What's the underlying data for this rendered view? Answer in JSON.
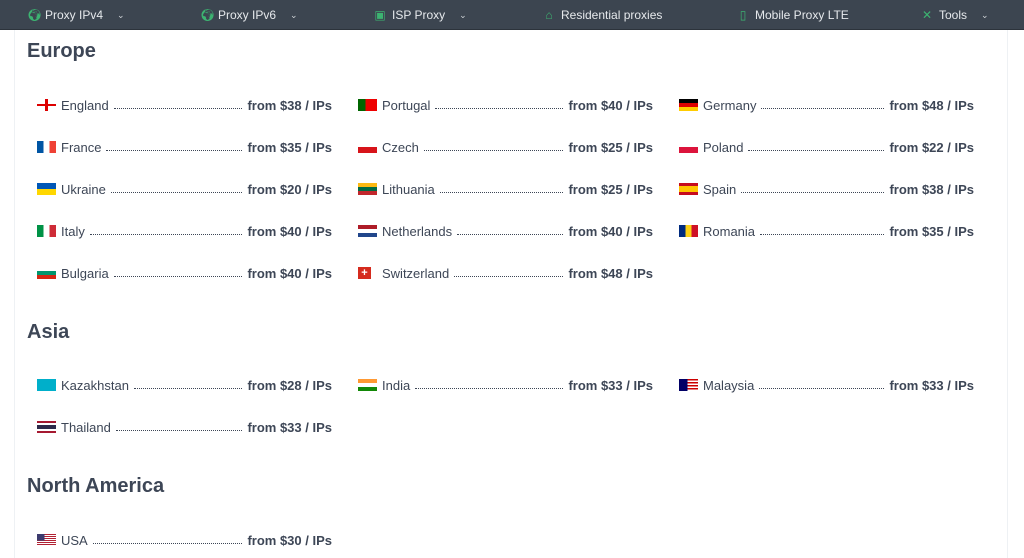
{
  "nav": [
    {
      "label": "Proxy IPv4",
      "icon": "globe-pin-icon",
      "dropdown": true
    },
    {
      "label": "Proxy IPv6",
      "icon": "globe-pin-icon",
      "dropdown": true
    },
    {
      "label": "ISP Proxy",
      "icon": "monitor-shield-icon",
      "dropdown": true
    },
    {
      "label": "Residential proxies",
      "icon": "home-icon",
      "dropdown": false
    },
    {
      "label": "Mobile Proxy LTE",
      "icon": "phone-icon",
      "dropdown": false
    },
    {
      "label": "Tools",
      "icon": "tools-icon",
      "dropdown": true
    }
  ],
  "accent": "#3cb371",
  "regions": [
    {
      "title": "Europe",
      "countries": [
        {
          "name": "England",
          "price": "from $38 / IPs",
          "flag": "england"
        },
        {
          "name": "Portugal",
          "price": "from $40 / IPs",
          "flag": "portugal"
        },
        {
          "name": "Germany",
          "price": "from $48 / IPs",
          "flag": "germany"
        },
        {
          "name": "France",
          "price": "from $35 / IPs",
          "flag": "france"
        },
        {
          "name": "Czech",
          "price": "from $25 / IPs",
          "flag": "czech"
        },
        {
          "name": "Poland",
          "price": "from $22 / IPs",
          "flag": "poland"
        },
        {
          "name": "Ukraine",
          "price": "from $20 / IPs",
          "flag": "ukraine"
        },
        {
          "name": "Lithuania",
          "price": "from $25 / IPs",
          "flag": "lithuania"
        },
        {
          "name": "Spain",
          "price": "from $38 / IPs",
          "flag": "spain"
        },
        {
          "name": "Italy",
          "price": "from $40 / IPs",
          "flag": "italy"
        },
        {
          "name": "Netherlands",
          "price": "from $40 / IPs",
          "flag": "netherlands"
        },
        {
          "name": "Romania",
          "price": "from $35 / IPs",
          "flag": "romania"
        },
        {
          "name": "Bulgaria",
          "price": "from $40 / IPs",
          "flag": "bulgaria"
        },
        {
          "name": "Switzerland",
          "price": "from $48 / IPs",
          "flag": "switzerland"
        }
      ]
    },
    {
      "title": "Asia",
      "countries": [
        {
          "name": "Kazakhstan",
          "price": "from $28 / IPs",
          "flag": "kazakhstan"
        },
        {
          "name": "India",
          "price": "from $33 / IPs",
          "flag": "india"
        },
        {
          "name": "Malaysia",
          "price": "from $33 / IPs",
          "flag": "malaysia"
        },
        {
          "name": "Thailand",
          "price": "from $33 / IPs",
          "flag": "thailand"
        }
      ]
    },
    {
      "title": "North America",
      "countries": [
        {
          "name": "USA",
          "price": "from $30 / IPs",
          "flag": "usa"
        }
      ]
    }
  ]
}
